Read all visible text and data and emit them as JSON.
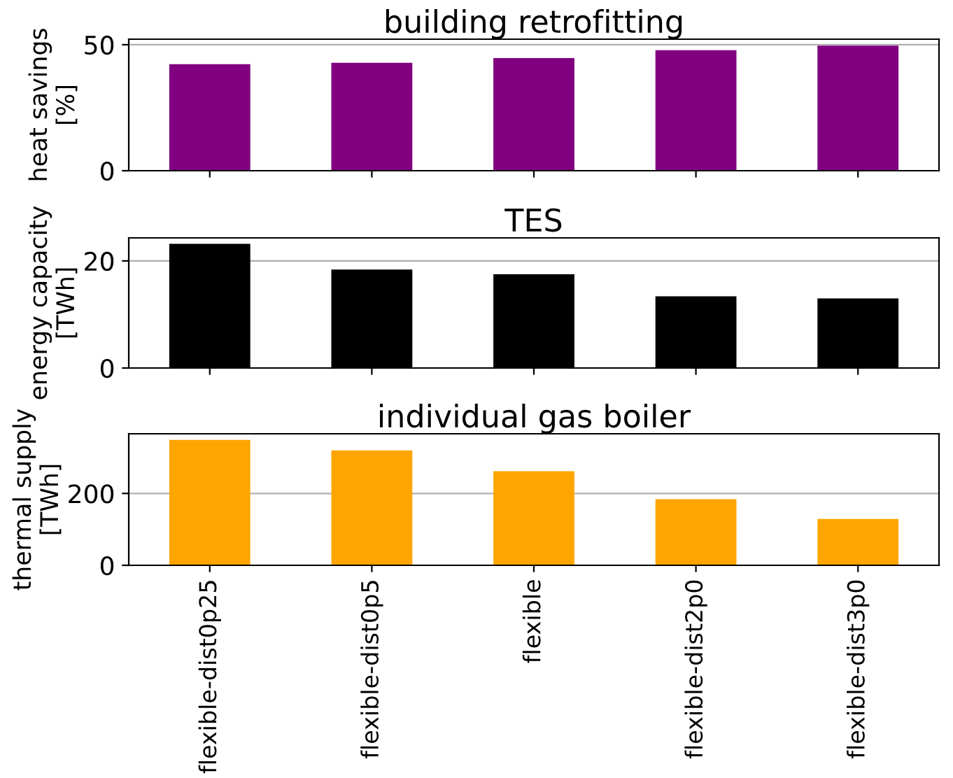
{
  "chart_data": [
    {
      "type": "bar",
      "title": "building retrofitting",
      "ylabel": "heat savings\n[%]",
      "categories": [
        null,
        null,
        null,
        null,
        null
      ],
      "values": [
        42.3,
        42.8,
        44.7,
        47.8,
        49.6
      ],
      "color": "#800080",
      "ylim": [
        0,
        52.2
      ],
      "yticks": [
        0,
        50
      ],
      "grid": "y",
      "tick_labels": "y"
    },
    {
      "type": "bar",
      "title": "TES",
      "ylabel": "energy capacity\n[TWh]",
      "categories": [
        null,
        null,
        null,
        null,
        null
      ],
      "values": [
        23.2,
        18.4,
        17.5,
        13.4,
        13.0
      ],
      "color": "#000000",
      "ylim": [
        0,
        24.3
      ],
      "yticks": [
        0,
        20
      ],
      "grid": "y",
      "tick_labels": "y"
    },
    {
      "type": "bar",
      "title": "individual gas boiler",
      "ylabel": "thermal supply\n[TWh]",
      "categories": [
        "flexible-dist0p25",
        "flexible-dist0p5",
        "flexible",
        "flexible-dist2p0",
        "flexible-dist3p0"
      ],
      "values": [
        349,
        320,
        262,
        184,
        129
      ],
      "color": "#ffa500",
      "ylim": [
        0,
        366
      ],
      "yticks": [
        0,
        200
      ],
      "grid": "y"
    }
  ]
}
